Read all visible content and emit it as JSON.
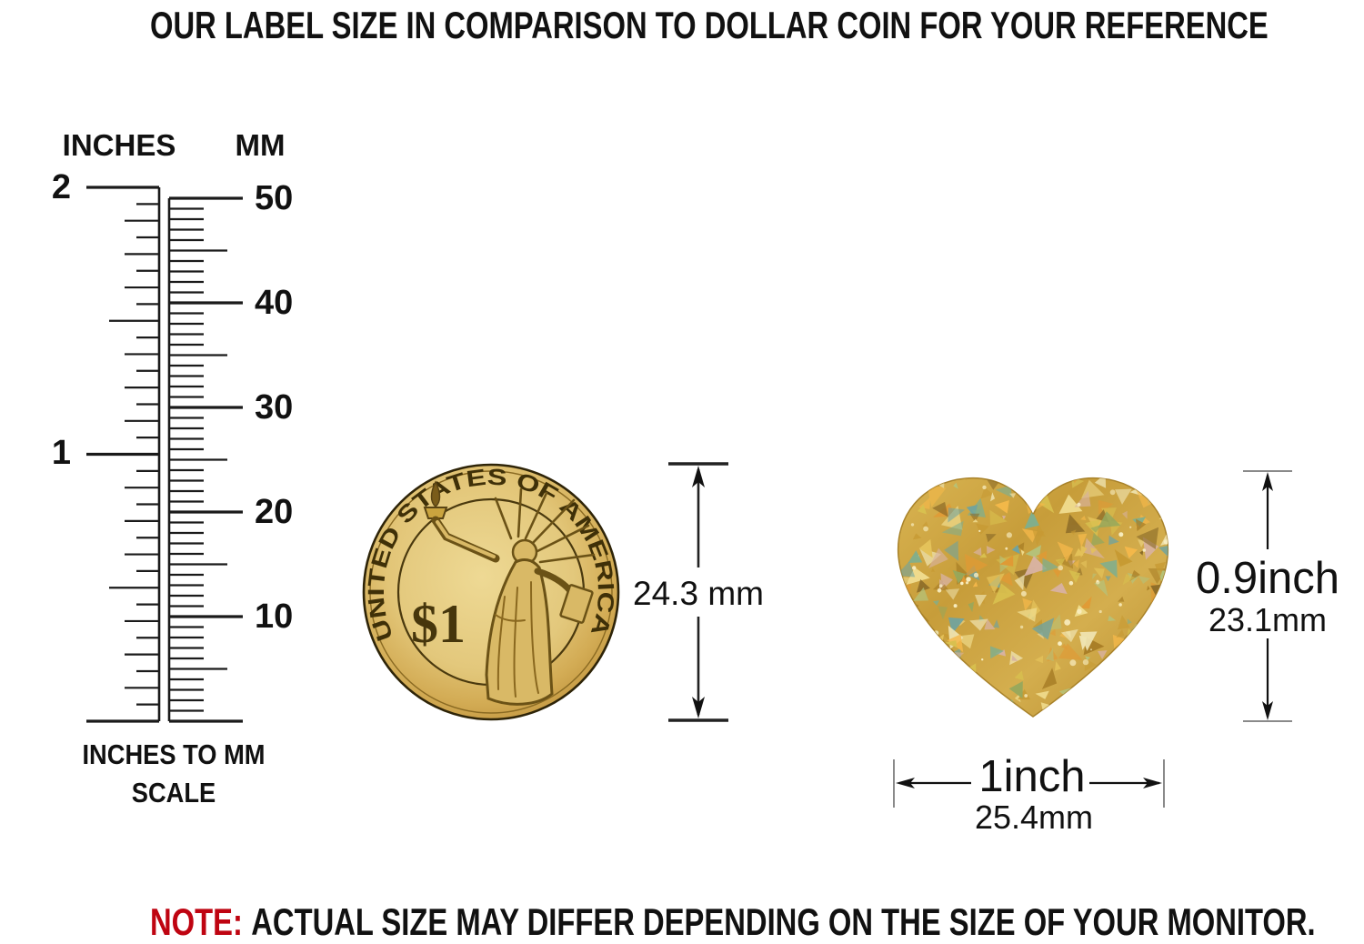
{
  "title": "OUR LABEL SIZE IN COMPARISON TO DOLLAR COIN FOR YOUR REFERENCE",
  "ruler": {
    "inches_header": "INCHES",
    "mm_header": "MM",
    "inch_labels": [
      "2",
      "1"
    ],
    "mm_labels": [
      "50",
      "40",
      "30",
      "20",
      "10"
    ],
    "caption_line1": "INCHES TO MM",
    "caption_line2": "SCALE"
  },
  "coin": {
    "inscription": "UNITED STATES OF AMERICA",
    "denomination": "$1",
    "diameter_label": "24.3 mm"
  },
  "label_sticker": {
    "shape": "heart",
    "height_inch": "0.9inch",
    "height_mm": "23.1mm",
    "width_inch": "1inch",
    "width_mm": "25.4mm"
  },
  "note": {
    "prefix": "NOTE:",
    "text": "ACTUAL SIZE MAY DIFFER DEPENDING ON THE SIZE OF YOUR MONITOR."
  },
  "colors": {
    "note_prefix_red": "#bf0411",
    "coin_gold": "#d4ab54",
    "sticker_gold": "#c9a23e",
    "dimension_line": "#1a1a1a"
  }
}
